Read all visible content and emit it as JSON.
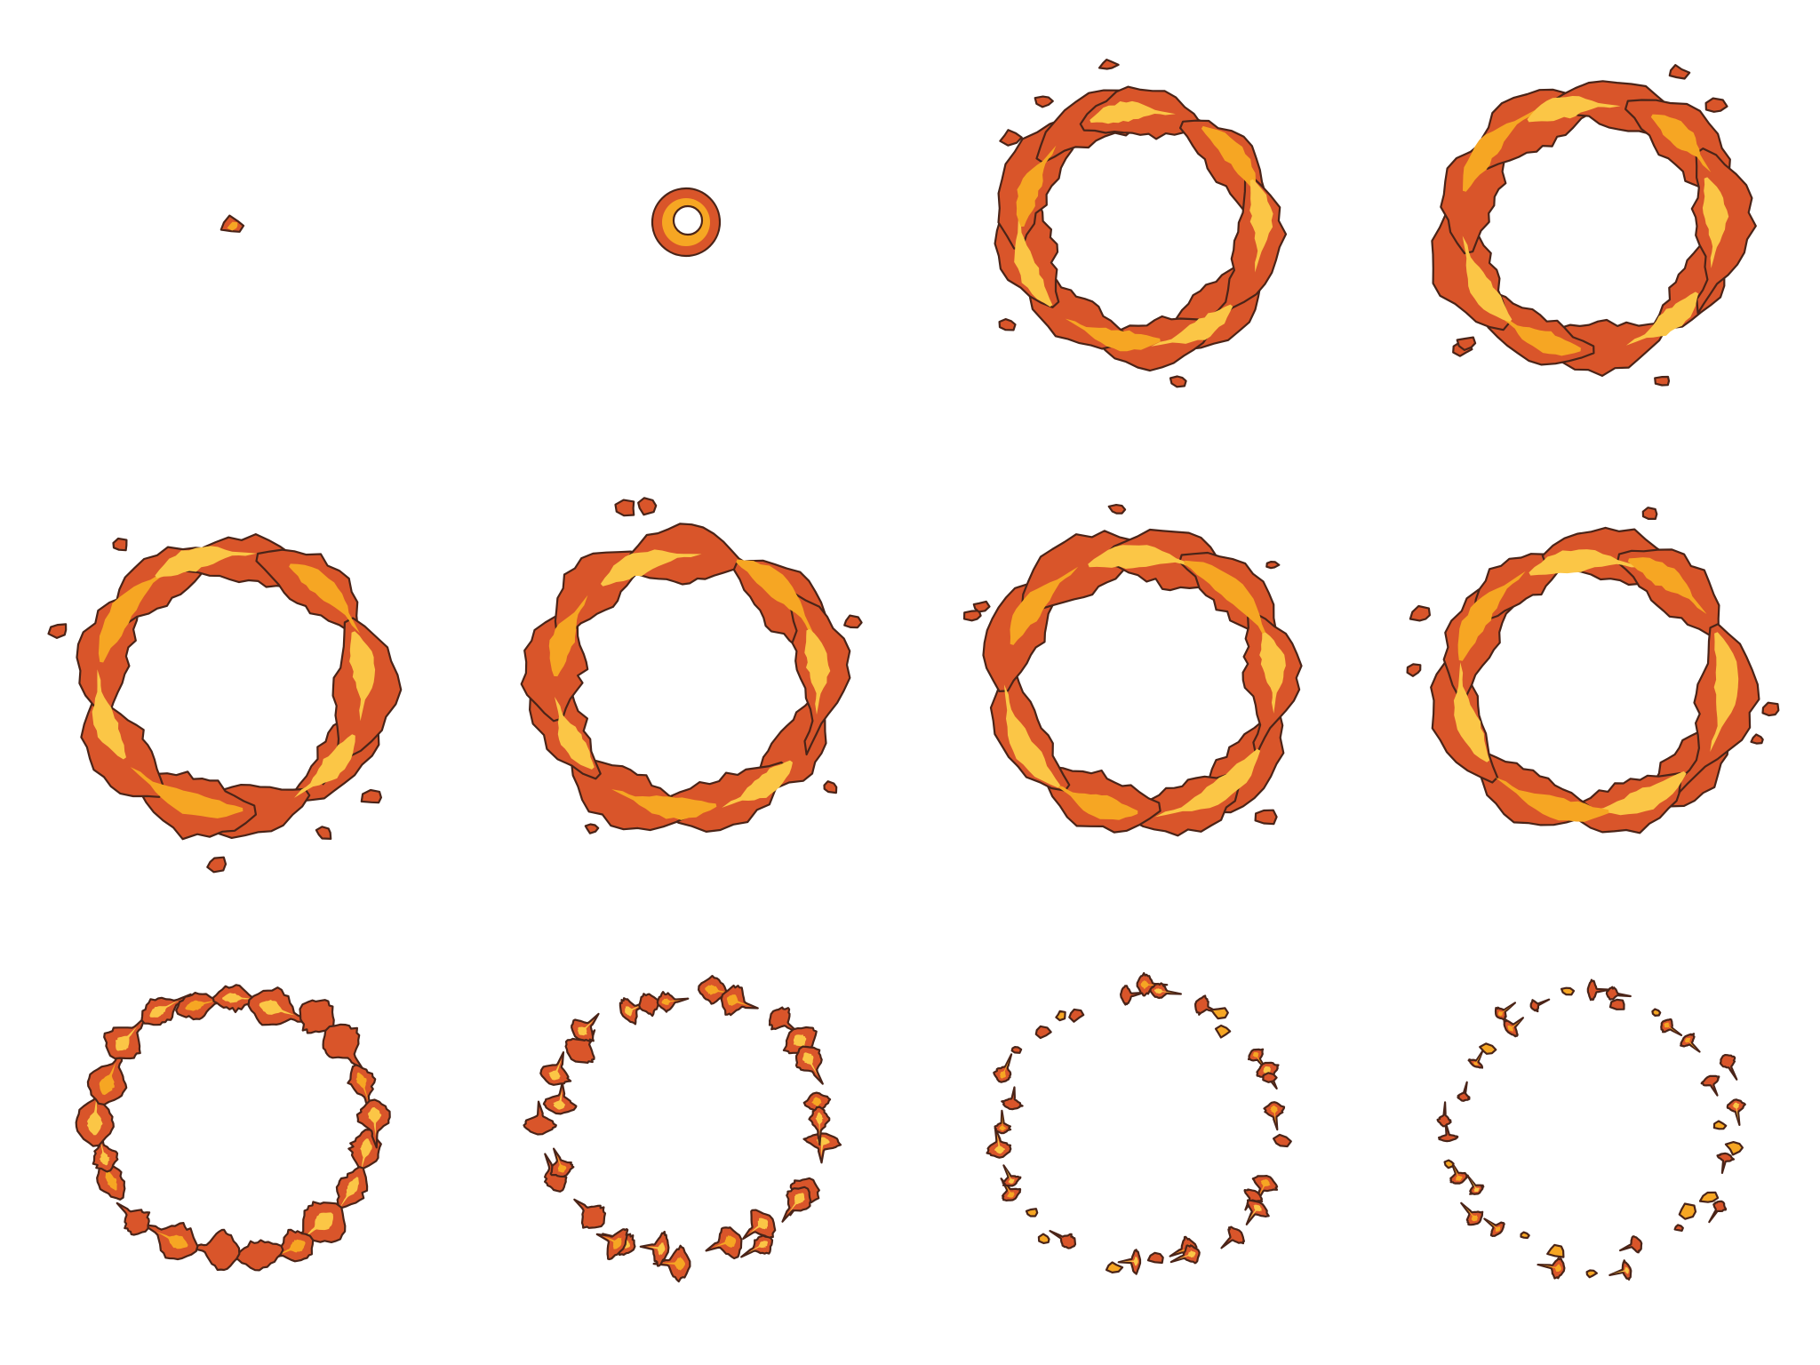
{
  "sprite_sheet": {
    "background_color": "#ffffff",
    "palette": {
      "outline": "#4a2418",
      "outer_flame": "#d9552a",
      "mid_flame": "#e8762e",
      "inner_flame": "#f6a623",
      "core_glow": "#fbc646"
    },
    "grid": {
      "rows": 3,
      "columns": 4
    },
    "frames": [
      {
        "index": 1,
        "phase": "spark",
        "ring_scale": 0.12,
        "integrity": 1.0
      },
      {
        "index": 2,
        "phase": "ignite",
        "ring_scale": 0.28,
        "integrity": 1.0
      },
      {
        "index": 3,
        "phase": "expand",
        "ring_scale": 0.9,
        "integrity": 1.0
      },
      {
        "index": 4,
        "phase": "expand",
        "ring_scale": 0.97,
        "integrity": 1.0
      },
      {
        "index": 5,
        "phase": "burn",
        "ring_scale": 1.0,
        "integrity": 0.92
      },
      {
        "index": 6,
        "phase": "burn",
        "ring_scale": 1.0,
        "integrity": 0.88
      },
      {
        "index": 7,
        "phase": "burn",
        "ring_scale": 1.0,
        "integrity": 0.84
      },
      {
        "index": 8,
        "phase": "burn",
        "ring_scale": 1.0,
        "integrity": 0.8
      },
      {
        "index": 9,
        "phase": "break-up",
        "ring_scale": 1.02,
        "integrity": 0.62
      },
      {
        "index": 10,
        "phase": "break-up",
        "ring_scale": 1.03,
        "integrity": 0.4
      },
      {
        "index": 11,
        "phase": "dissipate",
        "ring_scale": 1.05,
        "integrity": 0.22
      },
      {
        "index": 12,
        "phase": "dissipate",
        "ring_scale": 1.06,
        "integrity": 0.12
      }
    ]
  }
}
